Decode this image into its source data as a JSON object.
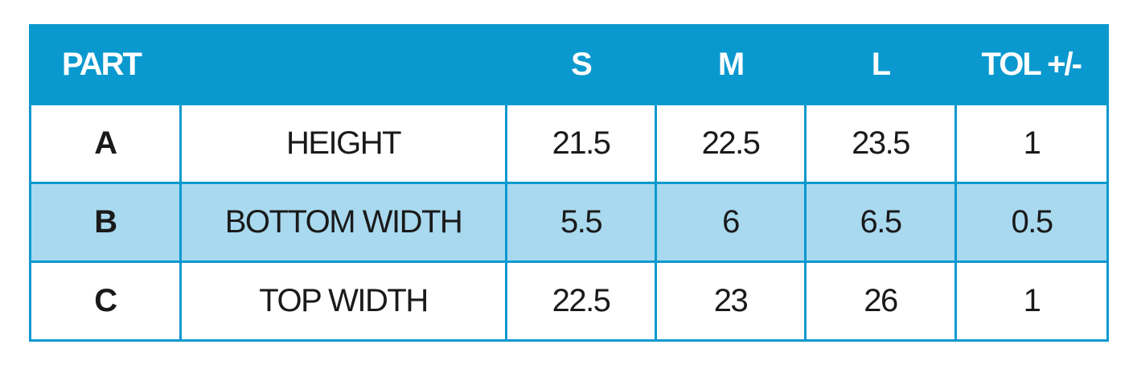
{
  "table": {
    "header": [
      "PART",
      "S",
      "M",
      "L",
      "TOL +/-"
    ],
    "rows": [
      [
        "A",
        "HEIGHT",
        21.5,
        22.5,
        23.5,
        1
      ],
      [
        "B",
        "BOTTOM WIDTH",
        5.5,
        6,
        6.5,
        0.5
      ],
      [
        "C",
        "TOP WIDTH",
        22.5,
        23,
        26,
        1
      ]
    ]
  }
}
